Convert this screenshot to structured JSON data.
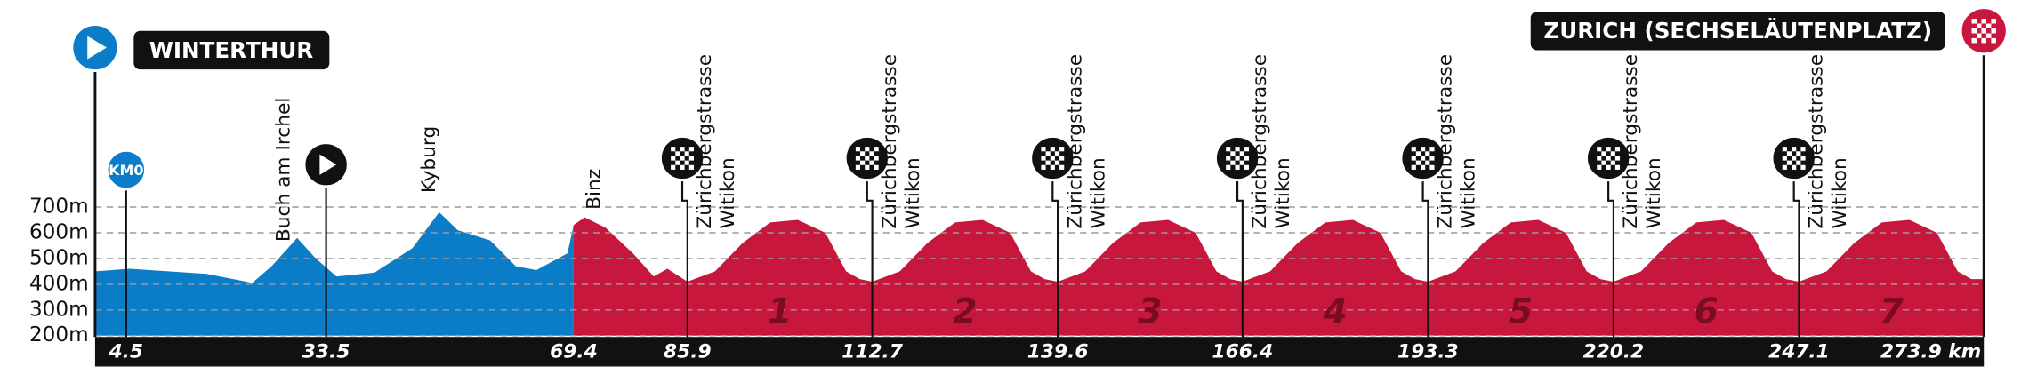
{
  "chart_data": {
    "type": "area",
    "start": "WINTERTHUR",
    "finish": "ZURICH (SECHSELÄUTENPLATZ)",
    "km0": "KM0",
    "places": [
      "Buch am Irchel",
      "Kyburg",
      "Binz"
    ],
    "lap_climb": [
      "Zürichbergstrasse",
      "Witikon"
    ],
    "laps": [
      1,
      2,
      3,
      4,
      5,
      6,
      7
    ],
    "xlim": [
      0,
      273.9
    ],
    "xticks": [
      4.5,
      33.5,
      69.4,
      85.9,
      112.7,
      139.6,
      166.4,
      193.3,
      220.2,
      247.1,
      {
        "value": 273.9,
        "label": "273.9 km"
      }
    ],
    "ylim": [
      200,
      700
    ],
    "yticks": [
      {
        "value": 200,
        "label": "200m"
      },
      {
        "value": 300,
        "label": "300m"
      },
      {
        "value": 400,
        "label": "400m"
      },
      {
        "value": 500,
        "label": "500m"
      },
      {
        "value": 600,
        "label": "600m"
      },
      {
        "value": 700,
        "label": "700m"
      }
    ],
    "grid": true,
    "series": [
      {
        "color": "#0b7dc8",
        "x": [
          0,
          5,
          10.6,
          16.2,
          22.8,
          25.6,
          29.3,
          32,
          35,
          40.5,
          46,
          49.9,
          52.6,
          57.3,
          61,
          64,
          68.5,
          69.4
        ],
        "values": [
          450,
          460,
          450,
          440,
          405,
          470,
          580,
          500,
          430,
          445,
          540,
          680,
          610,
          570,
          470,
          455,
          520,
          630
        ]
      },
      {
        "color": "#c8173d",
        "x": [
          69.4,
          71,
          74,
          78,
          81,
          83,
          85.9,
          89.9,
          93.9,
          97.9,
          101.9,
          105.9,
          108.9,
          110.9,
          112.7,
          116.7,
          120.7,
          124.7,
          128.7,
          132.7,
          135.7,
          137.7,
          139.6,
          143.6,
          147.6,
          151.6,
          155.6,
          159.6,
          162.6,
          164.6,
          166.4,
          170.4,
          174.4,
          178.4,
          182.4,
          186.4,
          189.4,
          191.4,
          193.3,
          197.3,
          201.3,
          205.3,
          209.3,
          213.3,
          216.3,
          218.3,
          220.2,
          224.2,
          228.2,
          232.2,
          236.2,
          240.2,
          243.2,
          245.2,
          247.1,
          251.1,
          255.1,
          259.1,
          263.1,
          267.1,
          270.1,
          272.1,
          273.9
        ],
        "values": [
          630,
          660,
          620,
          520,
          430,
          460,
          410,
          450,
          560,
          640,
          650,
          600,
          450,
          420,
          410,
          450,
          560,
          640,
          650,
          600,
          450,
          420,
          410,
          450,
          560,
          640,
          650,
          600,
          450,
          420,
          410,
          450,
          560,
          640,
          650,
          600,
          450,
          420,
          410,
          450,
          560,
          640,
          650,
          600,
          450,
          420,
          410,
          450,
          560,
          640,
          650,
          600,
          450,
          420,
          410,
          450,
          560,
          640,
          650,
          600,
          450,
          420,
          420
        ]
      }
    ]
  }
}
